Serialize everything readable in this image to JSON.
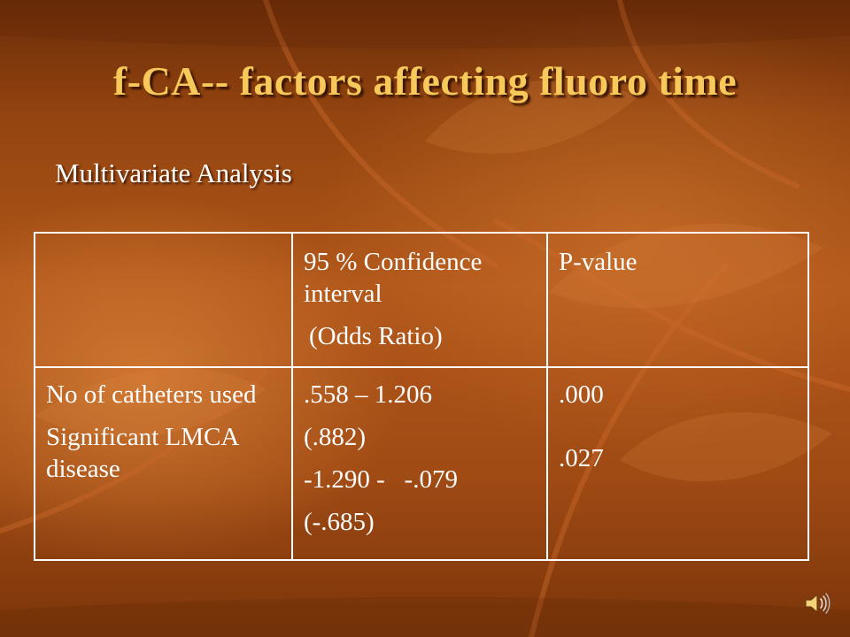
{
  "slide": {
    "title": "f-CA-- factors affecting fluoro time",
    "subtitle": "Multivariate Analysis"
  },
  "table": {
    "header": {
      "col1": "",
      "col2_line1": "95 % Confidence interval",
      "col2_line2": "(Odds Ratio)",
      "col3": "P-value"
    },
    "row": {
      "factor1": "No of catheters used",
      "factor2": "Significant LMCA disease",
      "ci1": ".558 – 1.206",
      "or1": "(.882)",
      "ci2": "-1.290 -   -.079",
      "or2": "(-.685)",
      "p1": ".000",
      "p2": ".027"
    }
  },
  "icons": {
    "audio": "speaker-icon"
  },
  "colors": {
    "title": "#f6c95a",
    "text": "#ffffff",
    "background": "#a04a14"
  }
}
